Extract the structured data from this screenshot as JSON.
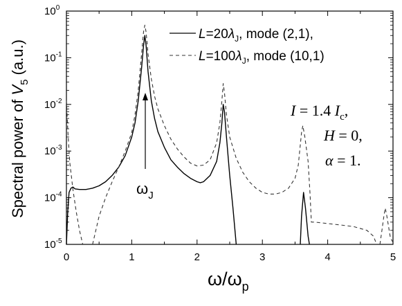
{
  "chart_data": {
    "type": "line",
    "xlabel_main": "ω/ω",
    "xlabel_sub": "p",
    "ylabel_main": "Spectral power of ",
    "ylabel_var": "V",
    "ylabel_sub": "5",
    "ylabel_unit": " (a.u.)",
    "x_ticks": [
      "0",
      "1",
      "2",
      "3",
      "4",
      "5"
    ],
    "y_ticks": [
      {
        "base": "10",
        "exp": "0"
      },
      {
        "base": "10",
        "exp": "-1"
      },
      {
        "base": "10",
        "exp": "-2"
      },
      {
        "base": "10",
        "exp": "-3"
      },
      {
        "base": "10",
        "exp": "-4"
      },
      {
        "base": "10",
        "exp": "-5"
      }
    ],
    "xlim": [
      0,
      5
    ],
    "ylim_log10": [
      -5,
      0
    ],
    "y_scale": "log",
    "legend_position": "top-right",
    "series": [
      {
        "style": "solid",
        "legend": {
          "pre": "L",
          "mid": "=20",
          "lam": "λ",
          "lam_sub": "J",
          "post": ", mode (2,1),"
        },
        "segments": [
          [
            [
              0.0,
              1e-05
            ],
            [
              0.02,
              5e-05
            ],
            [
              0.04,
              0.00013
            ],
            [
              0.07,
              0.00016
            ],
            [
              0.1,
              0.00017
            ],
            [
              0.13,
              0.000155
            ],
            [
              0.2,
              0.00015
            ],
            [
              0.3,
              0.00015
            ],
            [
              0.4,
              0.00016
            ],
            [
              0.5,
              0.00018
            ],
            [
              0.6,
              0.00022
            ],
            [
              0.7,
              0.0003
            ],
            [
              0.8,
              0.00045
            ],
            [
              0.9,
              0.0008
            ],
            [
              1.0,
              0.002
            ],
            [
              1.05,
              0.004
            ],
            [
              1.1,
              0.012
            ],
            [
              1.15,
              0.06
            ],
            [
              1.18,
              0.18
            ],
            [
              1.2,
              0.3
            ],
            [
              1.22,
              0.18
            ],
            [
              1.25,
              0.05
            ],
            [
              1.3,
              0.012
            ],
            [
              1.35,
              0.005
            ],
            [
              1.4,
              0.0026
            ],
            [
              1.5,
              0.0012
            ],
            [
              1.6,
              0.00065
            ],
            [
              1.7,
              0.00045
            ],
            [
              1.8,
              0.00033
            ],
            [
              1.9,
              0.00026
            ],
            [
              2.0,
              0.00022
            ],
            [
              2.05,
              0.00021
            ],
            [
              2.1,
              0.00022
            ],
            [
              2.2,
              0.0003
            ],
            [
              2.3,
              0.0006
            ],
            [
              2.35,
              0.0015
            ],
            [
              2.38,
              0.004
            ],
            [
              2.4,
              0.01
            ],
            [
              2.42,
              0.007
            ],
            [
              2.45,
              0.002
            ],
            [
              2.5,
              0.0003
            ],
            [
              2.55,
              6e-05
            ],
            [
              2.6,
              1e-05
            ]
          ],
          [
            [
              3.58,
              1e-05
            ],
            [
              3.6,
              4e-05
            ],
            [
              3.63,
              0.00013
            ],
            [
              3.66,
              6e-05
            ],
            [
              3.7,
              1.5e-05
            ],
            [
              3.72,
              1e-05
            ]
          ]
        ]
      },
      {
        "style": "dashed",
        "legend": {
          "pre": "L",
          "mid": "=100",
          "lam": "λ",
          "lam_sub": "J",
          "post": ", mode (10,1)"
        },
        "segments": [
          [
            [
              0.0,
              0.012
            ],
            [
              0.02,
              0.003
            ],
            [
              0.05,
              0.0006
            ],
            [
              0.1,
              0.00015
            ],
            [
              0.15,
              5e-05
            ],
            [
              0.2,
              2e-05
            ],
            [
              0.25,
              1e-05
            ]
          ],
          [
            [
              0.4,
              1e-05
            ],
            [
              0.45,
              2e-05
            ],
            [
              0.5,
              4e-05
            ],
            [
              0.6,
              0.0001
            ],
            [
              0.7,
              0.00022
            ],
            [
              0.8,
              0.00045
            ],
            [
              0.9,
              0.001
            ],
            [
              1.0,
              0.0025
            ],
            [
              1.05,
              0.006
            ],
            [
              1.1,
              0.02
            ],
            [
              1.15,
              0.12
            ],
            [
              1.18,
              0.35
            ],
            [
              1.2,
              0.5
            ],
            [
              1.22,
              0.35
            ],
            [
              1.25,
              0.12
            ],
            [
              1.3,
              0.035
            ],
            [
              1.35,
              0.015
            ],
            [
              1.4,
              0.008
            ],
            [
              1.5,
              0.0035
            ],
            [
              1.6,
              0.0018
            ],
            [
              1.7,
              0.0011
            ],
            [
              1.8,
              0.00075
            ],
            [
              1.9,
              0.00055
            ],
            [
              2.0,
              0.00048
            ],
            [
              2.1,
              0.0005
            ],
            [
              2.2,
              0.00065
            ],
            [
              2.3,
              0.0015
            ],
            [
              2.35,
              0.004
            ],
            [
              2.38,
              0.012
            ],
            [
              2.4,
              0.028
            ],
            [
              2.42,
              0.018
            ],
            [
              2.45,
              0.006
            ],
            [
              2.5,
              0.002
            ],
            [
              2.6,
              0.0007
            ],
            [
              2.7,
              0.00035
            ],
            [
              2.8,
              0.00022
            ],
            [
              2.9,
              0.00016
            ],
            [
              3.0,
              0.00013
            ],
            [
              3.1,
              0.00012
            ],
            [
              3.2,
              0.00012
            ],
            [
              3.3,
              0.00013
            ],
            [
              3.4,
              0.00016
            ],
            [
              3.5,
              0.00026
            ],
            [
              3.55,
              0.0005
            ],
            [
              3.6,
              0.0025
            ],
            [
              3.62,
              0.0035
            ],
            [
              3.65,
              0.002
            ],
            [
              3.7,
              0.0006
            ],
            [
              3.73,
              0.00012
            ],
            [
              3.75,
              3e-05
            ],
            [
              3.8,
              3e-05
            ],
            [
              4.0,
              2.8e-05
            ],
            [
              4.2,
              2.6e-05
            ],
            [
              4.4,
              2.4e-05
            ],
            [
              4.6,
              2e-05
            ],
            [
              4.7,
              1.5e-05
            ],
            [
              4.75,
              1e-05
            ]
          ],
          [
            [
              4.8,
              1e-05
            ],
            [
              4.83,
              2e-05
            ],
            [
              4.86,
              4e-05
            ],
            [
              4.88,
              6e-05
            ],
            [
              4.9,
              4.5e-05
            ],
            [
              4.93,
              2.5e-05
            ],
            [
              4.96,
              1.4e-05
            ],
            [
              5.0,
              1.1e-05
            ]
          ]
        ]
      }
    ],
    "annotations": {
      "params": [
        {
          "a": "I",
          "b": " = 1.4 ",
          "c": "I",
          "sub": "c",
          "d": ","
        },
        {
          "a": "H",
          "b": " = 0,"
        },
        {
          "a": "α",
          "b": " = 1."
        }
      ],
      "arrow_label_main": "ω",
      "arrow_label_sub": "J",
      "arrow_x": 1.2
    }
  }
}
